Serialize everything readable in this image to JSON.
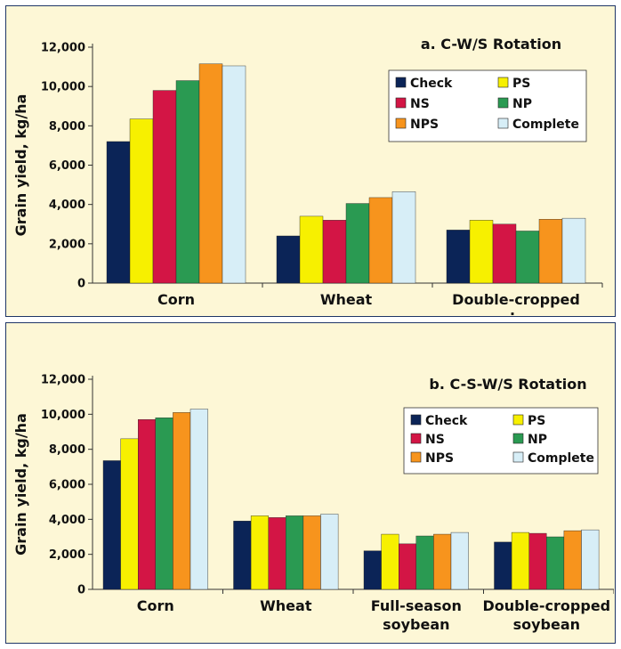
{
  "chart_data": [
    {
      "type": "bar",
      "title": "a. C-W/S Rotation",
      "ylabel": "Grain yield, kg/ha",
      "xlabel": "",
      "ylim": [
        0,
        12000
      ],
      "yticks": [
        "0",
        "2,000",
        "4,000",
        "6,000",
        "8,000",
        "10,000",
        "12,000"
      ],
      "categories": [
        [
          "Corn"
        ],
        [
          "Wheat"
        ],
        [
          "Double-cropped",
          "soybean"
        ]
      ],
      "series": [
        {
          "name": "Check",
          "color": "#0b2457",
          "values": [
            7200,
            2400,
            2700
          ]
        },
        {
          "name": "PS",
          "color": "#f7f000",
          "values": [
            8350,
            3400,
            3200
          ]
        },
        {
          "name": "NS",
          "color": "#d31545",
          "values": [
            9800,
            3200,
            3000
          ]
        },
        {
          "name": "NP",
          "color": "#2a9a52",
          "values": [
            10300,
            4050,
            2650
          ]
        },
        {
          "name": "NPS",
          "color": "#f7941d",
          "values": [
            11150,
            4350,
            3250
          ]
        },
        {
          "name": "Complete",
          "color": "#d7eef7",
          "values": [
            11050,
            4650,
            3300
          ]
        }
      ],
      "legend_position": "top-right",
      "grid": false
    },
    {
      "type": "bar",
      "title": "b. C-S-W/S Rotation",
      "ylabel": "Grain yield, kg/ha",
      "xlabel": "",
      "ylim": [
        0,
        12000
      ],
      "yticks": [
        "0",
        "2,000",
        "4,000",
        "6,000",
        "8,000",
        "10,000",
        "12,000"
      ],
      "categories": [
        [
          "Corn"
        ],
        [
          "Wheat"
        ],
        [
          "Full-season",
          "soybean"
        ],
        [
          "Double-cropped",
          "soybean"
        ]
      ],
      "series": [
        {
          "name": "Check",
          "color": "#0b2457",
          "values": [
            7350,
            3900,
            2200,
            2700
          ]
        },
        {
          "name": "PS",
          "color": "#f7f000",
          "values": [
            8600,
            4200,
            3150,
            3250
          ]
        },
        {
          "name": "NS",
          "color": "#d31545",
          "values": [
            9700,
            4100,
            2600,
            3200
          ]
        },
        {
          "name": "NP",
          "color": "#2a9a52",
          "values": [
            9800,
            4200,
            3050,
            3000
          ]
        },
        {
          "name": "NPS",
          "color": "#f7941d",
          "values": [
            10100,
            4200,
            3150,
            3350
          ]
        },
        {
          "name": "Complete",
          "color": "#d7eef7",
          "values": [
            10300,
            4300,
            3250,
            3400
          ]
        }
      ],
      "legend_position": "top-right",
      "grid": false
    }
  ]
}
